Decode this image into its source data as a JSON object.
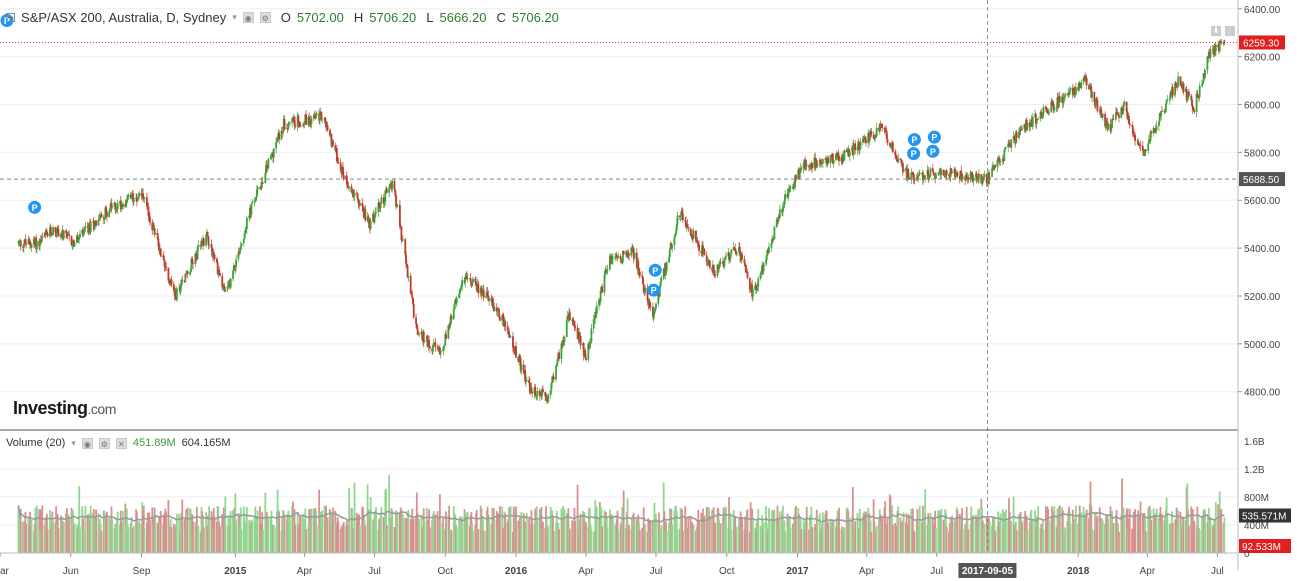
{
  "header": {
    "symbol_title": "S&P/ASX 200, Australia, D, Sydney",
    "open_key": "O",
    "open": "5702.00",
    "high_key": "H",
    "high": "5706.20",
    "low_key": "L",
    "low": "5666.20",
    "close_key": "C",
    "close": "5706.20"
  },
  "volume_legend": {
    "label": "Volume (20)",
    "value1": "451.89M",
    "value2": "604.165M"
  },
  "logo": {
    "text": "Investing",
    "suffix": ".com"
  },
  "colors": {
    "up": "#3aa33a",
    "down": "#c0392b",
    "vol_up": "#90d890",
    "vol_down": "#d99090",
    "ma_line": "#9a9a9a",
    "last_price": "#e02020",
    "crosshair_label": "#555555",
    "grid": "#eeeeee",
    "axis": "#888888"
  },
  "icons": [
    "collapse-box-icon",
    "dropdown-caret-icon",
    "settings-icon",
    "close-icon",
    "annotation-p-icon"
  ],
  "chart_data": {
    "type": "candlestick",
    "title": "S&P/ASX 200, Australia, D, Sydney",
    "price_axis_ticks": [
      "6400.00",
      "6200.00",
      "6000.00",
      "5800.00",
      "5600.00",
      "5400.00",
      "5200.00",
      "5000.00",
      "4800.00"
    ],
    "price_range": [
      4640,
      6420
    ],
    "last_price_label": "6259.30",
    "crosshair_price_label": "5688.50",
    "crosshair_date_label": "2017-09-05",
    "volume_axis_ticks": [
      "1.6B",
      "1.2B",
      "800M",
      "400M",
      "0"
    ],
    "volume_range": [
      0,
      1600
    ],
    "volume_ma_label": "535.571M",
    "volume_last_label": "92.533M",
    "x_tick_labels": [
      "ar",
      "Jun",
      "Sep",
      "2015",
      "Apr",
      "Jul",
      "Oct",
      "2016",
      "Apr",
      "Jul",
      "Oct",
      "2017",
      "Apr",
      "Jul",
      "2017-09-05",
      "2018",
      "Apr",
      "Jul"
    ],
    "x_tick_dates": [
      "2014-03",
      "2014-06",
      "2014-09",
      "2015-01",
      "2015-04",
      "2015-07",
      "2015-10",
      "2016-01",
      "2016-04",
      "2016-07",
      "2016-10",
      "2017-01",
      "2017-04",
      "2017-07",
      "2017-09-05",
      "2018-01",
      "2018-04",
      "2018-07"
    ],
    "x_tick_bold": [
      false,
      false,
      false,
      true,
      false,
      false,
      false,
      true,
      false,
      false,
      false,
      true,
      false,
      false,
      false,
      true,
      false,
      false
    ],
    "price_anchors": [
      {
        "date": "2014-03-25",
        "close": 5420
      },
      {
        "date": "2014-04-20",
        "close": 5420
      },
      {
        "date": "2014-05-10",
        "close": 5480
      },
      {
        "date": "2014-06-05",
        "close": 5420
      },
      {
        "date": "2014-07-20",
        "close": 5560
      },
      {
        "date": "2014-09-01",
        "close": 5630
      },
      {
        "date": "2014-10-15",
        "close": 5200
      },
      {
        "date": "2014-11-25",
        "close": 5460
      },
      {
        "date": "2014-12-20",
        "close": 5200
      },
      {
        "date": "2015-01-20",
        "close": 5550
      },
      {
        "date": "2015-03-05",
        "close": 5920
      },
      {
        "date": "2015-04-25",
        "close": 5950
      },
      {
        "date": "2015-05-20",
        "close": 5720
      },
      {
        "date": "2015-06-25",
        "close": 5500
      },
      {
        "date": "2015-07-25",
        "close": 5680
      },
      {
        "date": "2015-08-25",
        "close": 5050
      },
      {
        "date": "2015-09-25",
        "close": 4960
      },
      {
        "date": "2015-10-25",
        "close": 5280
      },
      {
        "date": "2015-11-25",
        "close": 5200
      },
      {
        "date": "2015-12-15",
        "close": 5100
      },
      {
        "date": "2016-01-20",
        "close": 4800
      },
      {
        "date": "2016-02-12",
        "close": 4780
      },
      {
        "date": "2016-03-10",
        "close": 5120
      },
      {
        "date": "2016-04-01",
        "close": 4950
      },
      {
        "date": "2016-05-01",
        "close": 5350
      },
      {
        "date": "2016-06-01",
        "close": 5380
      },
      {
        "date": "2016-06-27",
        "close": 5120
      },
      {
        "date": "2016-08-01",
        "close": 5550
      },
      {
        "date": "2016-09-15",
        "close": 5300
      },
      {
        "date": "2016-10-15",
        "close": 5400
      },
      {
        "date": "2016-11-05",
        "close": 5200
      },
      {
        "date": "2016-12-15",
        "close": 5600
      },
      {
        "date": "2017-01-10",
        "close": 5750
      },
      {
        "date": "2017-03-01",
        "close": 5780
      },
      {
        "date": "2017-04-20",
        "close": 5900
      },
      {
        "date": "2017-05-25",
        "close": 5700
      },
      {
        "date": "2017-07-15",
        "close": 5720
      },
      {
        "date": "2017-09-05",
        "close": 5690
      },
      {
        "date": "2017-10-20",
        "close": 5900
      },
      {
        "date": "2017-12-01",
        "close": 6000
      },
      {
        "date": "2018-01-10",
        "close": 6100
      },
      {
        "date": "2018-02-10",
        "close": 5900
      },
      {
        "date": "2018-03-01",
        "close": 6000
      },
      {
        "date": "2018-03-25",
        "close": 5790
      },
      {
        "date": "2018-05-10",
        "close": 6100
      },
      {
        "date": "2018-06-01",
        "close": 5990
      },
      {
        "date": "2018-06-20",
        "close": 6200
      },
      {
        "date": "2018-07-10",
        "close": 6259
      }
    ],
    "annotation_marker_text": "P",
    "annotation_dates": [
      "2014-03-10",
      "2014-04-15",
      "2016-06-28",
      "2016-06-30",
      "2017-06-01",
      "2017-06-02",
      "2017-06-26",
      "2017-06-28"
    ]
  }
}
